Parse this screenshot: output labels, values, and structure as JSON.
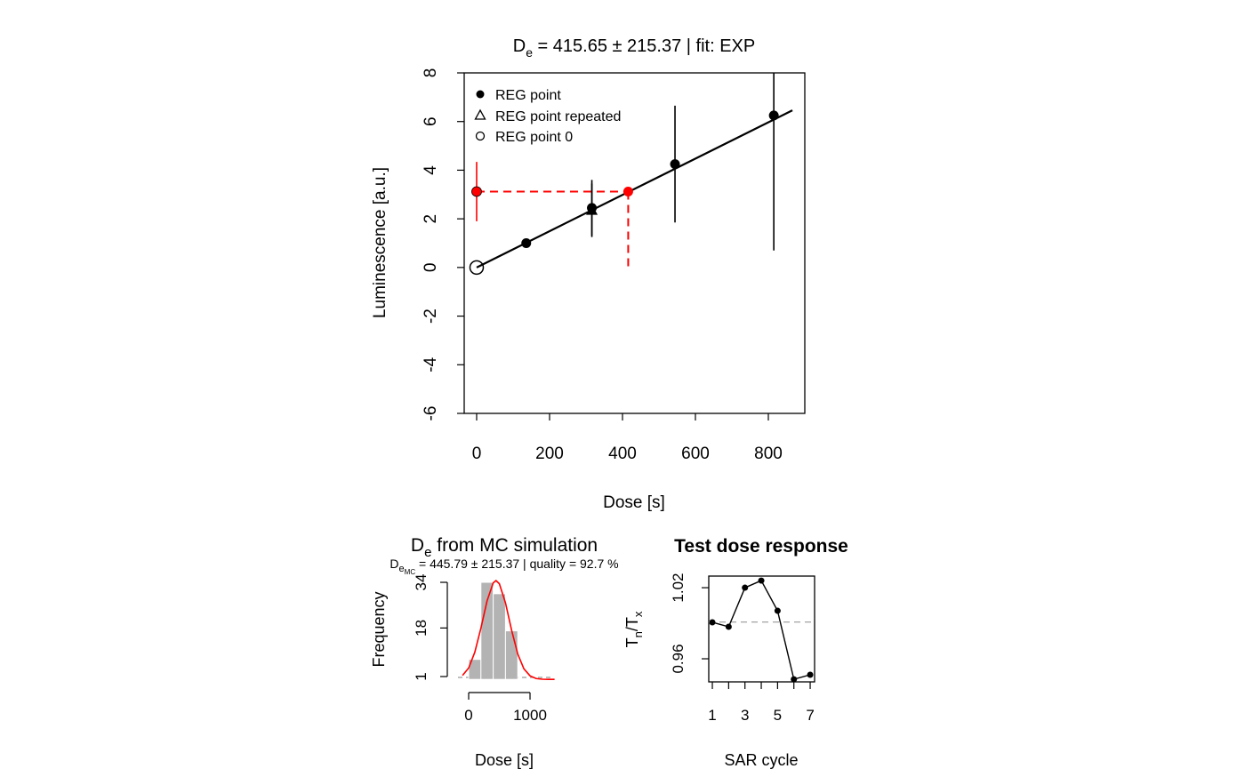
{
  "chart_data": [
    {
      "type": "scatter",
      "title": [
        "D",
        "e",
        " = 415.65 ± 215.37  | fit:  EXP"
      ],
      "x_label": "Dose [s]",
      "y_label": "Luminescence [a.u.]",
      "xlim": [
        -34.1,
        900
      ],
      "ylim": [
        -6,
        8
      ],
      "xticks": [
        0,
        200,
        400,
        600,
        800
      ],
      "yticks": [
        -6,
        -4,
        -2,
        0,
        2,
        4,
        6,
        8
      ],
      "legend": "topleft",
      "series": [
        {
          "name": "REG point",
          "marker": "filled-circle",
          "color": "#000000",
          "x": [
            136,
            316,
            544,
            815
          ],
          "y": [
            1.0,
            2.45,
            4.25,
            6.25
          ],
          "errors": [
            0.1,
            1.15,
            2.4,
            5.55
          ]
        },
        {
          "name": "REG point repeated",
          "marker": "triangle",
          "color": "#000000",
          "x": [
            316
          ],
          "y": [
            2.35
          ],
          "errors": [
            1.1
          ]
        },
        {
          "name": "REG point 0",
          "marker": "open-circle",
          "color": "#000000",
          "x": [
            0
          ],
          "y": [
            0
          ]
        }
      ],
      "natural": {
        "color": "#ff0000",
        "x": [
          0
        ],
        "y": [
          3.12
        ],
        "errors": [
          1.22
        ]
      },
      "de_point": {
        "color": "#ff0000",
        "x": [
          415.65
        ],
        "y": [
          3.12
        ]
      },
      "fit": {
        "color": "#000000",
        "x": [
          0,
          866
        ],
        "y": [
          0,
          6.46
        ]
      }
    },
    {
      "type": "histogram",
      "title": [
        "D",
        "e",
        " from MC simulation"
      ],
      "subtitle": [
        "D",
        "e",
        "MC",
        " = 445.79 ± 215.37  | quality =  92.7 %"
      ],
      "x_label": "Dose [s]",
      "y_label": "Frequency",
      "bins": [
        0,
        200,
        400,
        600,
        800
      ],
      "counts": [
        7,
        34,
        30,
        17
      ],
      "color": "#b3b3b3",
      "xlim": [
        -174,
        1391
      ],
      "ylim": [
        -0.87,
        35.25
      ],
      "xticks": [
        0,
        1000
      ],
      "yticks": [
        1,
        18,
        34
      ],
      "density_curve": {
        "color": "#ff0000",
        "x": [
          -100,
          0,
          100,
          200,
          300,
          400,
          446,
          500,
          600,
          700,
          800,
          900,
          1000,
          1100,
          1200,
          1300,
          1400
        ],
        "y": [
          1.4,
          4.0,
          9.5,
          18.0,
          27.5,
          33.8,
          34.6,
          33.5,
          26.8,
          17.2,
          8.9,
          3.7,
          1.25,
          0.3,
          0.06,
          0,
          0
        ]
      }
    },
    {
      "type": "line",
      "title": "Test dose response",
      "x_label": "SAR cycle",
      "y_label": [
        "T",
        "n",
        "/T",
        "x"
      ],
      "color": "#000000",
      "x": [
        1,
        2,
        3,
        4,
        5,
        6,
        7
      ],
      "values": [
        0.9908,
        0.987,
        1.02,
        1.026,
        1.0005,
        0.9427,
        0.9465
      ],
      "reference_line": 0.991,
      "xlim": [
        0.78,
        7.27
      ],
      "ylim": [
        0.9405,
        1.0298
      ],
      "xticks": [
        1,
        {
          "value": 2,
          "label": null
        },
        3,
        {
          "value": 4,
          "label": null
        },
        5,
        {
          "value": 6,
          "label": null
        },
        7
      ],
      "yticks": [
        0.96,
        1.02
      ]
    }
  ]
}
